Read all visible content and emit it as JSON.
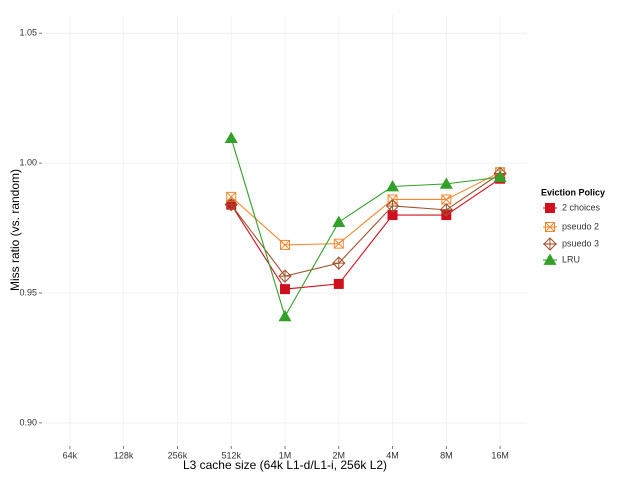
{
  "chart_data": {
    "type": "line",
    "x_label": "L3 cache size (64k L1-d/L1-i, 256k L2)",
    "y_label": "Miss ratio (vs. random)",
    "categories": [
      "64k",
      "128k",
      "256k",
      "512k",
      "1M",
      "2M",
      "4M",
      "8M",
      "16M"
    ],
    "legend_title": "Eviction Policy",
    "legend": "right",
    "grid": true,
    "series": [
      {
        "name": "2 choices",
        "color": "#d0101e",
        "shape": "square",
        "values": [
          null,
          null,
          null,
          0.984,
          0.9515,
          0.9535,
          0.98,
          0.98,
          0.994
        ]
      },
      {
        "name": "pseudo 2",
        "color": "#f4872f",
        "shape": "square-cross",
        "values": [
          null,
          null,
          null,
          0.987,
          0.9685,
          0.969,
          0.986,
          0.986,
          0.9965
        ]
      },
      {
        "name": "psuedo 3",
        "color": "#a0522d",
        "shape": "diamond-plus",
        "values": [
          null,
          null,
          null,
          0.984,
          0.9565,
          0.9615,
          0.9835,
          0.982,
          0.996
        ]
      },
      {
        "name": "LRU",
        "color": "#33a02c",
        "shape": "triangle",
        "values": [
          null,
          null,
          null,
          1.0096,
          0.941,
          0.9773,
          0.991,
          0.992,
          0.9946
        ]
      }
    ],
    "ylim": [
      0.8915,
      1.057
    ],
    "yticks": [
      {
        "value": 0.9,
        "label": "0.90"
      },
      0.95,
      {
        "value": 1,
        "label": "1.00"
      },
      1.05
    ]
  }
}
